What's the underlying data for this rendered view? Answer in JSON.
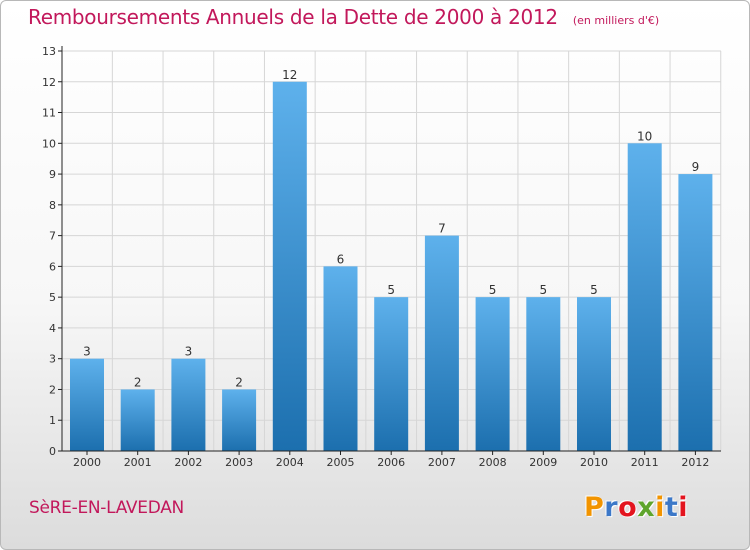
{
  "title": "Remboursements Annuels de la Dette de 2000 à 2012",
  "subtitle": "(en milliers d'€)",
  "commune": "SèRE-EN-LAVEDAN",
  "logo": {
    "letters": [
      "P",
      "r",
      "o",
      "x",
      "i",
      "t",
      "i"
    ],
    "colors": [
      "#f29400",
      "#3c78c8",
      "#e3141e",
      "#5fa52d",
      "#f29400",
      "#3c78c8",
      "#e3141e"
    ]
  },
  "colors": {
    "bar_light": "#5eb1ec",
    "bar_dark": "#1c6fae",
    "grid": "#d6d6d6",
    "axis": "#222222",
    "accent": "#c2185b"
  },
  "chart_data": {
    "type": "bar",
    "categories": [
      "2000",
      "2001",
      "2002",
      "2003",
      "2004",
      "2005",
      "2006",
      "2007",
      "2008",
      "2009",
      "2010",
      "2011",
      "2012"
    ],
    "values": [
      3,
      2,
      3,
      2,
      12,
      6,
      5,
      7,
      5,
      5,
      5,
      10,
      9
    ],
    "data_labels": [
      "3",
      "2",
      "3",
      "2",
      "12",
      "6",
      "5",
      "7",
      "5",
      "5",
      "5",
      "10",
      "9"
    ],
    "yticks": [
      "0",
      "1",
      "2",
      "3",
      "4",
      "5",
      "6",
      "7",
      "8",
      "9",
      "10",
      "11",
      "12",
      "13"
    ],
    "ylim": [
      0,
      13
    ],
    "grid": true,
    "legend": "none"
  }
}
